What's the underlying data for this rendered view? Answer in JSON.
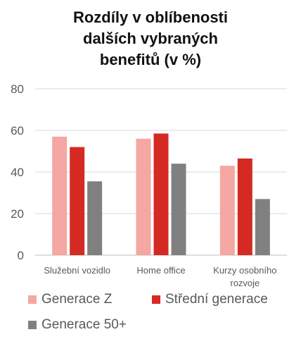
{
  "chart_data": {
    "type": "bar",
    "title_lines": [
      "Rozdíly v oblíbenosti",
      "dalších vybraných",
      "benefitů (v %)"
    ],
    "categories": [
      "Služební vozidlo",
      "Home office",
      "Kurzy osobního rozvoje"
    ],
    "category_label_lines": [
      [
        "Služební vozidlo"
      ],
      [
        "Home office"
      ],
      [
        "Kurzy osobního",
        "rozvoje"
      ]
    ],
    "series": [
      {
        "name": "Generace Z",
        "values": [
          57,
          56,
          43
        ],
        "color": "#f4a7a3"
      },
      {
        "name": "Střední generace",
        "values": [
          52,
          58.5,
          46.5
        ],
        "color": "#d42a23"
      },
      {
        "name": "Generace 50+",
        "values": [
          35.5,
          44,
          27
        ],
        "color": "#808080"
      }
    ],
    "ylim": [
      0,
      80
    ],
    "yticks": [
      0,
      20,
      40,
      60,
      80
    ],
    "grid": true,
    "legend_position": "bottom"
  }
}
